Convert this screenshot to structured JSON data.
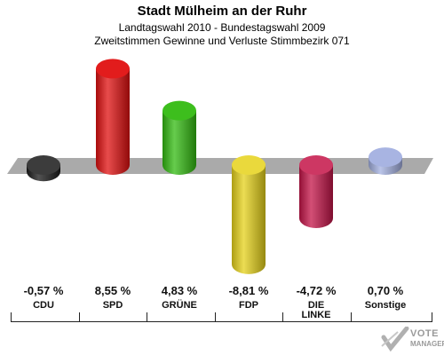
{
  "header": {
    "title": "Stadt Mülheim an der Ruhr",
    "subtitle1": "Landtagswahl 2010 - Bundestagswahl 2009",
    "subtitle2": "Zweitstimmen Gewinne und Verluste Stimmbezirk 071"
  },
  "chart_data": {
    "type": "bar",
    "categories": [
      "CDU",
      "SPD",
      "GRÜNE",
      "FDP",
      "DIE LINKE",
      "Sonstige"
    ],
    "category_labels": [
      [
        "CDU"
      ],
      [
        "SPD"
      ],
      [
        "GRÜNE"
      ],
      [
        "FDP"
      ],
      [
        "DIE",
        "LINKE"
      ],
      [
        "Sonstige"
      ]
    ],
    "values": [
      -0.57,
      8.55,
      4.83,
      -8.81,
      -4.72,
      0.7
    ],
    "value_labels": [
      "-0,57 %",
      "8,55 %",
      "4,83 %",
      "-8,81 %",
      "-4,72 %",
      "0,70 %"
    ],
    "colors": [
      "#1a1a1a",
      "#e01010",
      "#33bb11",
      "#e6d21a",
      "#c41448",
      "#a3b0e0"
    ],
    "ylim": [
      -10,
      10
    ],
    "grid": false
  },
  "logo": {
    "line1": "VOTE",
    "line2": "MANAGER"
  }
}
